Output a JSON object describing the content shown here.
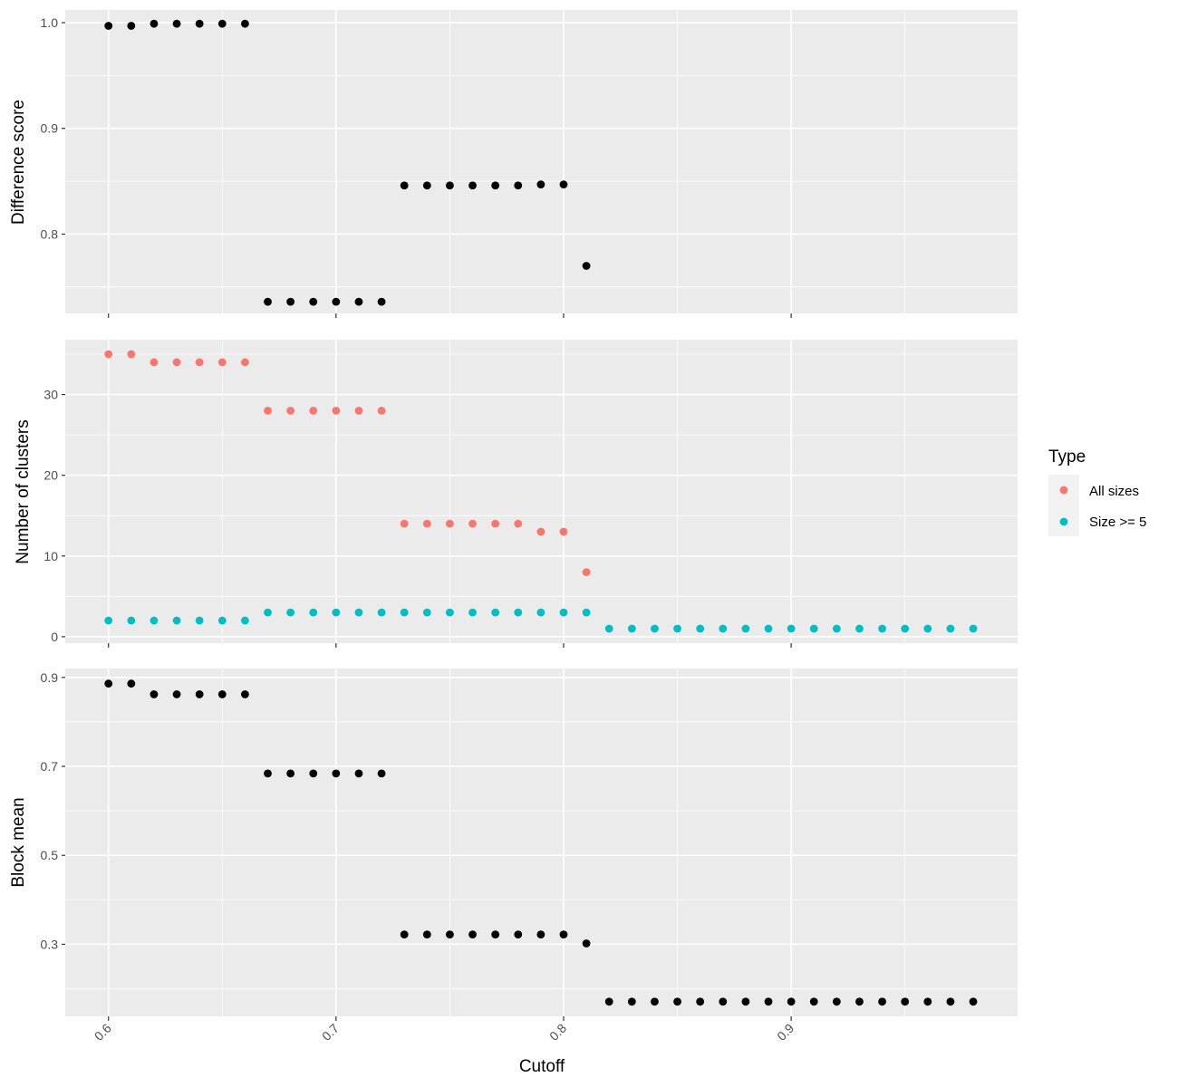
{
  "chart_data": {
    "type": "scatter",
    "xlabel": "Cutoff",
    "xlim": [
      0.581,
      0.9995
    ],
    "x_ticks": [
      "0.6",
      "0.7",
      "0.8",
      "0.9"
    ],
    "x_tick_values": [
      0.6,
      0.7,
      0.8,
      0.9
    ],
    "x_minor_ticks": [
      0.65,
      0.75,
      0.85,
      0.95
    ],
    "grid": true,
    "background": "#EBEBEB",
    "gridline_color": "#FFFFFF",
    "point_color": "#000000",
    "legend": {
      "title": "Type",
      "position": "right",
      "entries": [
        {
          "label": "All sizes",
          "color": "#F8766D"
        },
        {
          "label": "Size >= 5",
          "color": "#00BFC4"
        }
      ]
    },
    "panels": [
      {
        "ylabel": "Difference score",
        "ylim": [
          0.725,
          1.012
        ],
        "y_ticks": [
          "0.8",
          "0.9",
          "1.0"
        ],
        "y_tick_values": [
          0.8,
          0.9,
          1.0
        ],
        "y_minor_ticks": [
          0.75,
          0.85,
          0.95
        ],
        "series": [
          {
            "x": [
              0.6,
              0.61,
              0.62,
              0.63,
              0.64,
              0.65,
              0.66,
              0.67,
              0.68,
              0.69,
              0.7,
              0.71,
              0.72,
              0.73,
              0.74,
              0.75,
              0.76,
              0.77,
              0.78,
              0.79,
              0.8,
              0.81
            ],
            "y": [
              0.997,
              0.997,
              0.999,
              0.999,
              0.999,
              0.999,
              0.999,
              0.736,
              0.736,
              0.736,
              0.736,
              0.736,
              0.736,
              0.846,
              0.846,
              0.846,
              0.846,
              0.846,
              0.846,
              0.847,
              0.847,
              0.77
            ]
          }
        ]
      },
      {
        "ylabel": "Number of clusters",
        "ylim": [
          -0.8,
          36.8
        ],
        "y_ticks": [
          "0",
          "10",
          "20",
          "30"
        ],
        "y_tick_values": [
          0,
          10,
          20,
          30
        ],
        "y_minor_ticks": [
          5,
          15,
          25,
          35
        ],
        "series": [
          {
            "name": "All sizes",
            "x": [
              0.6,
              0.61,
              0.62,
              0.63,
              0.64,
              0.65,
              0.66,
              0.67,
              0.68,
              0.69,
              0.7,
              0.71,
              0.72,
              0.73,
              0.74,
              0.75,
              0.76,
              0.77,
              0.78,
              0.79,
              0.8,
              0.81
            ],
            "y": [
              35,
              35,
              34,
              34,
              34,
              34,
              34,
              28,
              28,
              28,
              28,
              28,
              28,
              14,
              14,
              14,
              14,
              14,
              14,
              13,
              13,
              8
            ]
          },
          {
            "name": "Size >= 5",
            "x": [
              0.6,
              0.61,
              0.62,
              0.63,
              0.64,
              0.65,
              0.66,
              0.67,
              0.68,
              0.69,
              0.7,
              0.71,
              0.72,
              0.73,
              0.74,
              0.75,
              0.76,
              0.77,
              0.78,
              0.79,
              0.8,
              0.81,
              0.82,
              0.83,
              0.84,
              0.85,
              0.86,
              0.87,
              0.88,
              0.89,
              0.9,
              0.91,
              0.92,
              0.93,
              0.94,
              0.95,
              0.96,
              0.97,
              0.98
            ],
            "y": [
              2,
              2,
              2,
              2,
              2,
              2,
              2,
              3,
              3,
              3,
              3,
              3,
              3,
              3,
              3,
              3,
              3,
              3,
              3,
              3,
              3,
              3,
              1,
              1,
              1,
              1,
              1,
              1,
              1,
              1,
              1,
              1,
              1,
              1,
              1,
              1,
              1,
              1,
              1
            ]
          }
        ]
      },
      {
        "ylabel": "Block mean",
        "ylim": [
          0.138,
          0.92
        ],
        "y_ticks": [
          "0.3",
          "0.5",
          "0.7",
          "0.9"
        ],
        "y_tick_values": [
          0.3,
          0.5,
          0.7,
          0.9
        ],
        "y_minor_ticks": [
          0.2,
          0.4,
          0.6,
          0.8
        ],
        "series": [
          {
            "x": [
              0.6,
              0.61,
              0.62,
              0.63,
              0.64,
              0.65,
              0.66,
              0.67,
              0.68,
              0.69,
              0.7,
              0.71,
              0.72,
              0.73,
              0.74,
              0.75,
              0.76,
              0.77,
              0.78,
              0.79,
              0.8,
              0.81,
              0.82,
              0.83,
              0.84,
              0.85,
              0.86,
              0.87,
              0.88,
              0.89,
              0.9,
              0.91,
              0.92,
              0.93,
              0.94,
              0.95,
              0.96,
              0.97,
              0.98
            ],
            "y": [
              0.886,
              0.886,
              0.862,
              0.862,
              0.862,
              0.862,
              0.862,
              0.684,
              0.684,
              0.684,
              0.684,
              0.684,
              0.684,
              0.322,
              0.322,
              0.322,
              0.322,
              0.322,
              0.322,
              0.322,
              0.322,
              0.302,
              0.171,
              0.171,
              0.171,
              0.171,
              0.171,
              0.171,
              0.171,
              0.171,
              0.171,
              0.171,
              0.171,
              0.171,
              0.171,
              0.171,
              0.171,
              0.171,
              0.171
            ]
          }
        ]
      }
    ]
  }
}
